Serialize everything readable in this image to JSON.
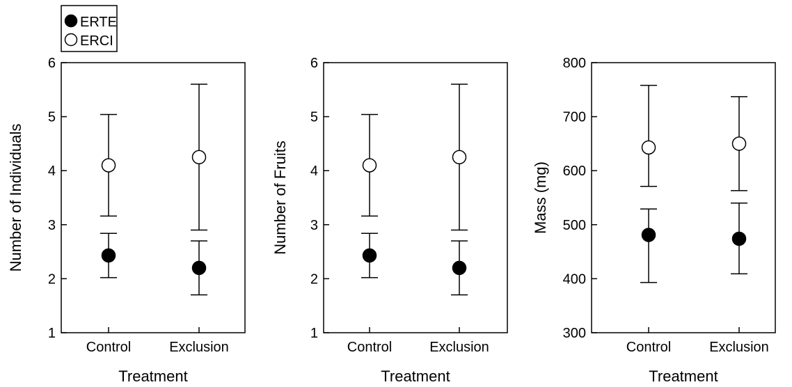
{
  "legend": {
    "entries": [
      {
        "label": "ERTE",
        "marker": "filled-circle"
      },
      {
        "label": "ERCI",
        "marker": "open-circle"
      }
    ]
  },
  "colors": {
    "ink": "#000000",
    "open_fill": "#ffffff"
  },
  "chart_data": [
    {
      "type": "scatter",
      "xlabel": "Treatment",
      "ylabel": "Number of Individuals",
      "categories": [
        "Control",
        "Exclusion"
      ],
      "ylim": [
        1,
        6
      ],
      "yticks": [
        1,
        2,
        3,
        4,
        5,
        6
      ],
      "series": [
        {
          "name": "ERTE",
          "values": [
            2.43,
            2.2
          ],
          "err_low": [
            2.02,
            1.7
          ],
          "err_high": [
            2.84,
            2.7
          ]
        },
        {
          "name": "ERCI",
          "values": [
            4.1,
            4.25
          ],
          "err_low": [
            3.16,
            2.9
          ],
          "err_high": [
            5.04,
            5.6
          ]
        }
      ]
    },
    {
      "type": "scatter",
      "xlabel": "Treatment",
      "ylabel": "Number of Fruits",
      "categories": [
        "Control",
        "Exclusion"
      ],
      "ylim": [
        1,
        6
      ],
      "yticks": [
        1,
        2,
        3,
        4,
        5,
        6
      ],
      "series": [
        {
          "name": "ERTE",
          "values": [
            2.43,
            2.2
          ],
          "err_low": [
            2.02,
            1.7
          ],
          "err_high": [
            2.84,
            2.7
          ]
        },
        {
          "name": "ERCI",
          "values": [
            4.1,
            4.25
          ],
          "err_low": [
            3.16,
            2.9
          ],
          "err_high": [
            5.04,
            5.6
          ]
        }
      ]
    },
    {
      "type": "scatter",
      "xlabel": "Treatment",
      "ylabel": "Mass (mg)",
      "categories": [
        "Control",
        "Exclusion"
      ],
      "ylim": [
        300,
        800
      ],
      "yticks": [
        300,
        400,
        500,
        600,
        700,
        800
      ],
      "series": [
        {
          "name": "ERTE",
          "values": [
            481,
            474
          ],
          "err_low": [
            393,
            409
          ],
          "err_high": [
            529,
            540
          ]
        },
        {
          "name": "ERCI",
          "values": [
            643,
            650
          ],
          "err_low": [
            571,
            563
          ],
          "err_high": [
            758,
            737
          ]
        }
      ]
    }
  ]
}
